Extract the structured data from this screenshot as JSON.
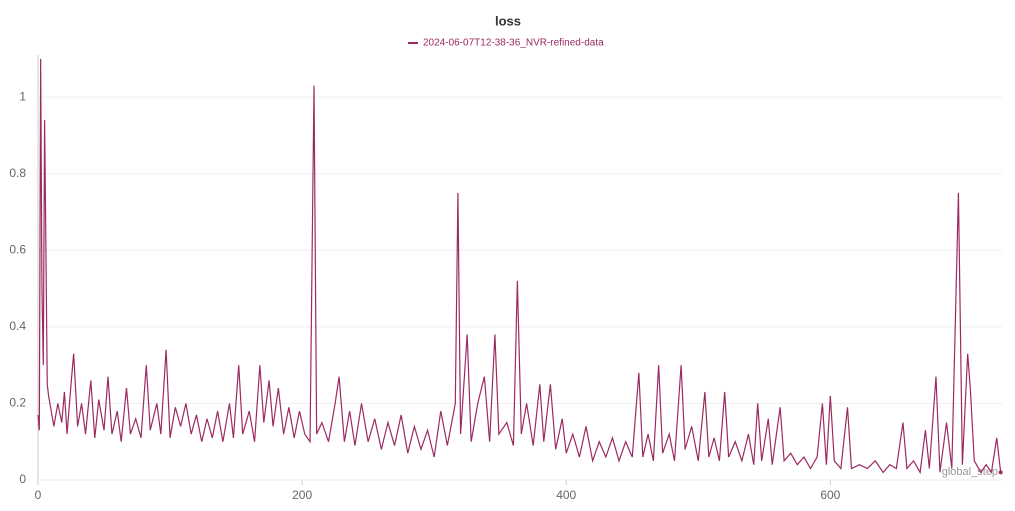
{
  "chart_data": {
    "type": "line",
    "title": "loss",
    "x_label": "global_step",
    "series": [
      {
        "name": "2024-06-07T12-38-36_NVR-refined-data",
        "color": "#9c2a62",
        "x": [
          0,
          1,
          2,
          3,
          4,
          5,
          6,
          7,
          8,
          10,
          12,
          15,
          18,
          20,
          22,
          25,
          27,
          30,
          33,
          36,
          40,
          43,
          46,
          50,
          53,
          56,
          60,
          63,
          67,
          70,
          74,
          78,
          82,
          85,
          90,
          93,
          97,
          100,
          104,
          108,
          112,
          116,
          120,
          124,
          128,
          132,
          136,
          140,
          145,
          148,
          152,
          155,
          160,
          164,
          168,
          171,
          175,
          178,
          182,
          186,
          190,
          194,
          198,
          202,
          206,
          209,
          211,
          215,
          220,
          225,
          228,
          232,
          236,
          240,
          245,
          250,
          255,
          260,
          265,
          270,
          275,
          280,
          285,
          290,
          295,
          300,
          305,
          310,
          316,
          318,
          320,
          325,
          328,
          333,
          338,
          342,
          346,
          349,
          355,
          360,
          363,
          366,
          370,
          375,
          380,
          383,
          388,
          392,
          397,
          400,
          405,
          410,
          415,
          420,
          425,
          430,
          435,
          440,
          445,
          450,
          455,
          458,
          462,
          466,
          470,
          473,
          478,
          482,
          487,
          490,
          495,
          500,
          505,
          508,
          512,
          516,
          520,
          523,
          528,
          533,
          538,
          542,
          545,
          548,
          553,
          556,
          562,
          565,
          570,
          575,
          580,
          585,
          590,
          594,
          597,
          600,
          603,
          608,
          613,
          616,
          622,
          628,
          634,
          640,
          645,
          650,
          655,
          658,
          663,
          668,
          672,
          675,
          680,
          683,
          688,
          692,
          697,
          700,
          704,
          706,
          709,
          714,
          718,
          722,
          726,
          729
        ],
        "values": [
          0.17,
          0.13,
          1.1,
          0.5,
          0.3,
          0.94,
          0.6,
          0.25,
          0.22,
          0.18,
          0.14,
          0.2,
          0.15,
          0.23,
          0.12,
          0.25,
          0.33,
          0.14,
          0.2,
          0.12,
          0.26,
          0.11,
          0.21,
          0.13,
          0.27,
          0.12,
          0.18,
          0.1,
          0.24,
          0.12,
          0.16,
          0.11,
          0.3,
          0.13,
          0.2,
          0.12,
          0.34,
          0.11,
          0.19,
          0.14,
          0.2,
          0.12,
          0.17,
          0.1,
          0.16,
          0.11,
          0.18,
          0.1,
          0.2,
          0.11,
          0.3,
          0.12,
          0.18,
          0.1,
          0.3,
          0.15,
          0.26,
          0.14,
          0.24,
          0.12,
          0.19,
          0.11,
          0.18,
          0.12,
          0.1,
          1.03,
          0.12,
          0.15,
          0.1,
          0.2,
          0.27,
          0.1,
          0.18,
          0.09,
          0.2,
          0.1,
          0.16,
          0.08,
          0.15,
          0.09,
          0.17,
          0.07,
          0.14,
          0.08,
          0.13,
          0.06,
          0.18,
          0.09,
          0.2,
          0.75,
          0.12,
          0.38,
          0.1,
          0.2,
          0.27,
          0.1,
          0.38,
          0.12,
          0.15,
          0.09,
          0.52,
          0.12,
          0.2,
          0.09,
          0.25,
          0.1,
          0.25,
          0.08,
          0.16,
          0.07,
          0.12,
          0.06,
          0.14,
          0.05,
          0.1,
          0.06,
          0.11,
          0.05,
          0.1,
          0.06,
          0.28,
          0.06,
          0.12,
          0.05,
          0.3,
          0.07,
          0.12,
          0.05,
          0.3,
          0.08,
          0.14,
          0.05,
          0.23,
          0.06,
          0.11,
          0.05,
          0.23,
          0.06,
          0.1,
          0.05,
          0.12,
          0.04,
          0.2,
          0.05,
          0.16,
          0.04,
          0.19,
          0.05,
          0.07,
          0.04,
          0.06,
          0.03,
          0.06,
          0.2,
          0.04,
          0.22,
          0.05,
          0.03,
          0.19,
          0.03,
          0.04,
          0.03,
          0.05,
          0.02,
          0.04,
          0.03,
          0.15,
          0.03,
          0.05,
          0.02,
          0.13,
          0.03,
          0.27,
          0.02,
          0.15,
          0.03,
          0.75,
          0.04,
          0.33,
          0.24,
          0.05,
          0.02,
          0.04,
          0.02,
          0.11,
          0.02
        ]
      }
    ],
    "xlim": [
      0,
      730
    ],
    "ylim": [
      0,
      1.11
    ],
    "xticks": [
      0,
      200,
      400,
      600
    ],
    "yticks": [
      0,
      0.2,
      0.4,
      0.6,
      0.8,
      1
    ],
    "grid": true
  }
}
